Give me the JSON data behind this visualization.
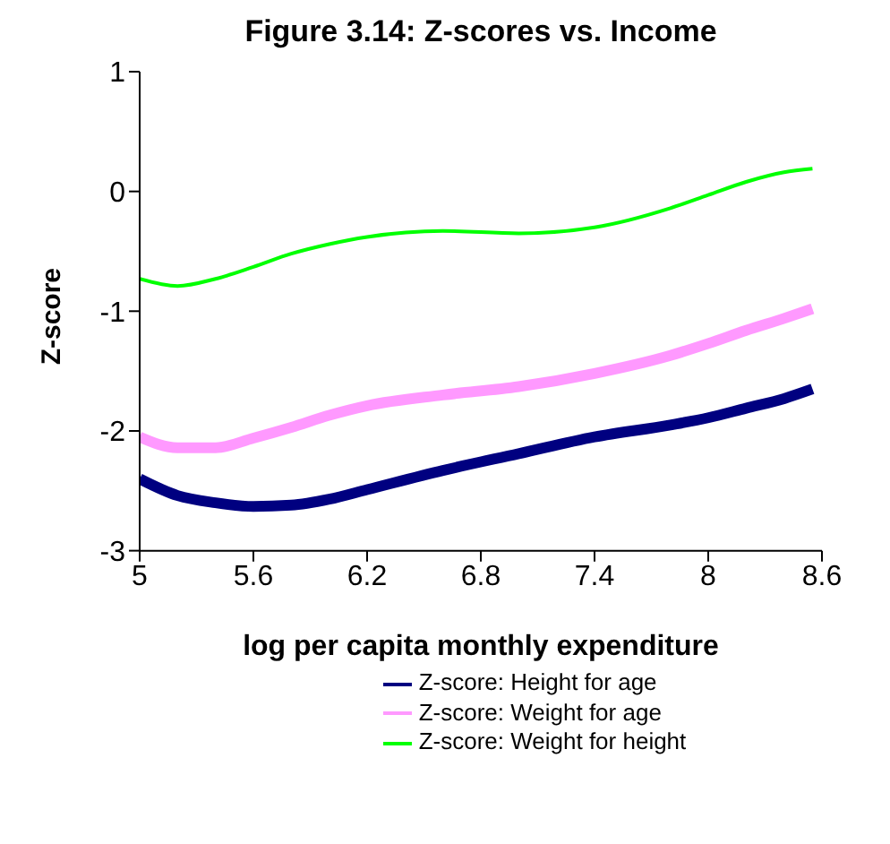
{
  "chart_data": {
    "type": "line",
    "title": "Figure 3.14: Z-scores vs. Income",
    "xlabel": "log per capita monthly expenditure",
    "ylabel": "Z-score",
    "x": [
      5,
      5.2,
      5.4,
      5.6,
      5.8,
      6.0,
      6.2,
      6.6,
      7.0,
      7.4,
      7.8,
      8.0,
      8.2,
      8.4,
      8.55
    ],
    "series": [
      {
        "name": "Z-score: Height for age",
        "color": "#000080",
        "values": [
          -2.4,
          -2.54,
          -2.6,
          -2.63,
          -2.62,
          -2.57,
          -2.49,
          -2.33,
          -2.19,
          -2.05,
          -1.95,
          -1.89,
          -1.81,
          -1.73,
          -1.65
        ]
      },
      {
        "name": "Z-score: Weight for age",
        "color": "#ff99ff",
        "values": [
          -2.05,
          -2.14,
          -2.14,
          -2.06,
          -1.97,
          -1.87,
          -1.79,
          -1.7,
          -1.63,
          -1.52,
          -1.37,
          -1.27,
          -1.16,
          -1.06,
          -0.98
        ]
      },
      {
        "name": "Z-score: Weight for height",
        "color": "#00ff00",
        "values": [
          -0.73,
          -0.79,
          -0.73,
          -0.63,
          -0.52,
          -0.44,
          -0.38,
          -0.33,
          -0.35,
          -0.3,
          -0.14,
          -0.03,
          0.08,
          0.16,
          0.19
        ]
      }
    ],
    "xlim": [
      5,
      8.6
    ],
    "xticks": [
      5,
      5.6,
      6.2,
      6.8,
      7.4,
      8,
      8.6
    ],
    "ylim": [
      -3,
      1
    ],
    "yticks": [
      -3,
      -2,
      -1,
      0,
      1
    ],
    "grid": false,
    "legend": "bottom",
    "marker": "none",
    "line_style": "solid"
  }
}
